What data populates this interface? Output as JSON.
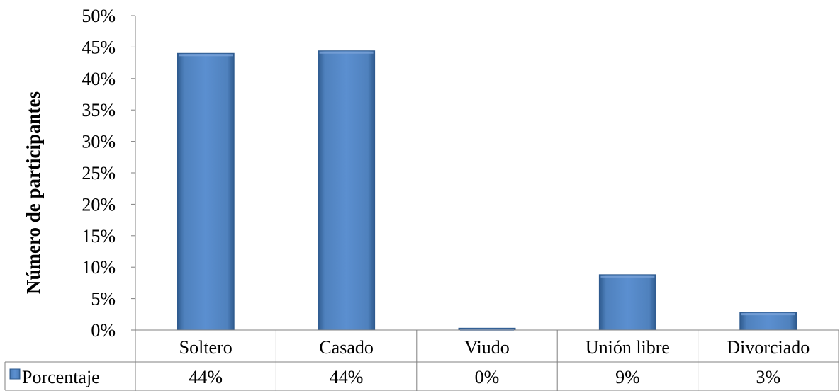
{
  "chart_data": {
    "type": "bar",
    "ylabel": "Número de participantes",
    "xlabel": "",
    "ylim": [
      0,
      50
    ],
    "yticks": [
      "0%",
      "5%",
      "10%",
      "15%",
      "20%",
      "25%",
      "30%",
      "35%",
      "40%",
      "45%",
      "50%"
    ],
    "categories": [
      "Soltero",
      "Casado",
      "Viudo",
      "Unión libre",
      "Divorciado"
    ],
    "series": [
      {
        "name": "Porcentaje",
        "values": [
          44,
          44.4,
          0.3,
          8.8,
          2.8
        ],
        "labels": [
          "44%",
          "44%",
          "0%",
          "9%",
          "3%"
        ]
      }
    ],
    "grid": false,
    "legend": "data-table",
    "colors": {
      "bar": "#4F81BD",
      "bar_dark": "#2E5A8E",
      "bar_light": "#7AA3D8"
    }
  }
}
